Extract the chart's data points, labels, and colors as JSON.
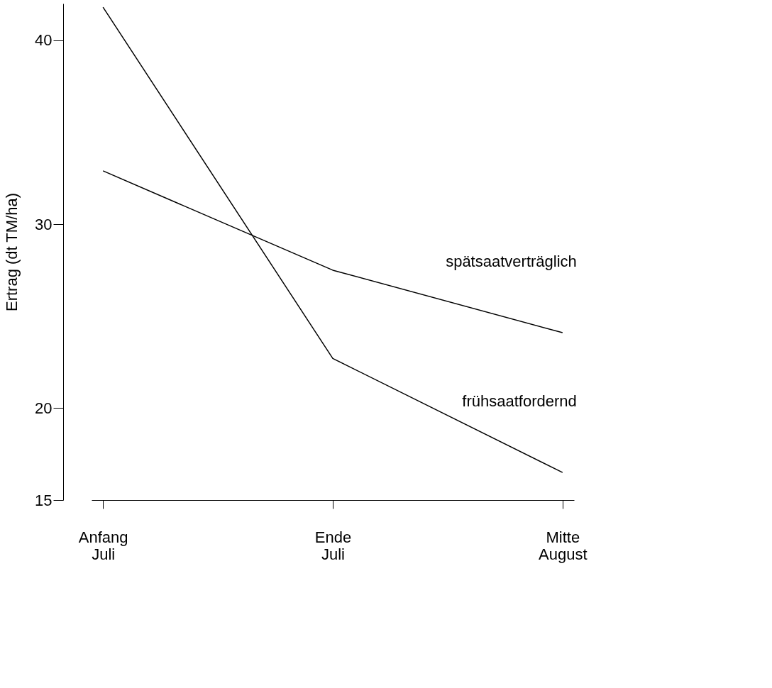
{
  "chart_data": {
    "type": "line",
    "ylabel": "Ertrag (dt TM/ha)",
    "categories": [
      "Anfang Juli",
      "Ende Juli",
      "Mitte August"
    ],
    "series": [
      {
        "name": "spätsaatverträglich",
        "color": "#000000",
        "values": [
          32.9,
          27.5,
          24.1
        ]
      },
      {
        "name": "frühsaatfordernd",
        "color": "#000000",
        "values": [
          41.8,
          22.7,
          16.5
        ]
      }
    ],
    "ylim": [
      15,
      42
    ],
    "yticks": [
      15,
      20,
      30,
      40
    ],
    "grid": false,
    "legend": false,
    "marker": "none",
    "line_style": "solid"
  }
}
